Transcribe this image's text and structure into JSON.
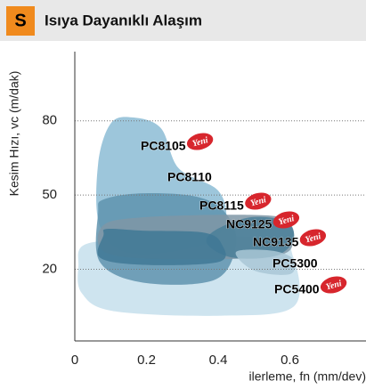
{
  "header": {
    "badge": "S",
    "title": "Isıya Dayanıklı Alaşım"
  },
  "chart_data": {
    "type": "region",
    "ylabel": "Kesim Hızı, vc (m/dak)",
    "xlabel": "ilerleme, fn (mm/dev)",
    "new_label": "Yeni",
    "xlim": [
      0,
      0.8
    ],
    "ylim": [
      -9,
      108
    ],
    "xticks": [
      0,
      0.2,
      0.4,
      0.6
    ],
    "yticks": [
      20,
      50,
      80
    ],
    "grid": true,
    "series": [
      {
        "name": "PC5400",
        "color": "#c6dfec",
        "new": true,
        "x": [
          0.01,
          0.03,
          0.19,
          0.54,
          0.61,
          0.61,
          0.41,
          0.11,
          0.02
        ],
        "y": [
          21.1,
          30.1,
          31.9,
          32.7,
          24.7,
          4.8,
          1.2,
          3.0,
          10.2
        ]
      },
      {
        "name": "PC8105",
        "color": "#8cbcd5",
        "new": true,
        "x": [
          0.07,
          0.065,
          0.1,
          0.16,
          0.24,
          0.29,
          0.4,
          0.42,
          0.36,
          0.16
        ],
        "y": [
          37.4,
          62.6,
          78.9,
          81.4,
          77.1,
          60.8,
          51.8,
          39.2,
          30.1,
          26.5
        ]
      },
      {
        "name": "PC8110",
        "color": "#5f93ae",
        "new": false,
        "x": [
          0.065,
          0.08,
          0.19,
          0.34,
          0.42,
          0.45,
          0.39,
          0.19,
          0.07
        ],
        "y": [
          42.8,
          48.2,
          50.7,
          49.3,
          42.8,
          30.1,
          15.7,
          14.6,
          22.9
        ]
      },
      {
        "name": "PC8115",
        "color": "#7f97a6",
        "new": true,
        "x": [
          0.077,
          0.19,
          0.49,
          0.59,
          0.61,
          0.56,
          0.29,
          0.09
        ],
        "y": [
          37.4,
          41.0,
          42.0,
          39.9,
          31.9,
          25.4,
          24.0,
          26.5
        ]
      },
      {
        "name": "NC9125",
        "color": "#4a7f99",
        "new": true,
        "x": [
          0.39,
          0.49,
          0.59,
          0.61,
          0.56,
          0.44,
          0.37
        ],
        "y": [
          35.6,
          41.0,
          39.2,
          31.9,
          25.4,
          24.7,
          30.1
        ]
      },
      {
        "name": "NC9135",
        "color": "#3f7895",
        "new": true,
        "x": [
          0.08,
          0.09,
          0.19,
          0.36,
          0.41,
          0.4,
          0.19,
          0.07
        ],
        "y": [
          33.7,
          36.3,
          35.6,
          34.8,
          30.1,
          22.9,
          21.8,
          24.7
        ]
      },
      {
        "name": "PC5300",
        "color": "#a9c7d6",
        "new": false,
        "x": [
          0.45,
          0.55,
          0.61,
          0.6,
          0.5
        ],
        "y": [
          27.0,
          27.5,
          24.0,
          18.0,
          19.5
        ]
      }
    ]
  }
}
